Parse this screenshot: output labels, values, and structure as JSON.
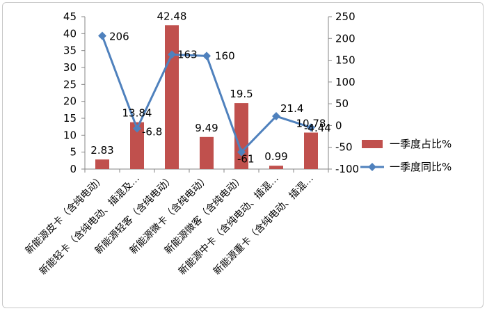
{
  "chart_data": {
    "type": "bar+line",
    "categories": [
      "新能源皮卡（含纯电动）",
      "新能轻卡（含纯电动、插混及…",
      "新能源轻客（含纯电动）",
      "新能源微卡（含纯电动）",
      "新能源微客（含纯电动）",
      "新能源中卡（含纯电动、插混…",
      "新能源重卡（含纯电动、插混…"
    ],
    "series": [
      {
        "name": "一季度占比%",
        "kind": "bar",
        "axis": "left",
        "values": [
          2.83,
          13.84,
          42.48,
          9.49,
          19.5,
          0.99,
          10.78
        ],
        "labels": [
          "2.83",
          "13.84",
          "42.48",
          "9.49",
          "19.5",
          "0.99",
          "10.78"
        ]
      },
      {
        "name": "一季度同比%",
        "kind": "line",
        "axis": "right",
        "values": [
          206,
          -6.8,
          163,
          160,
          -61,
          21.4,
          -4.44
        ],
        "labels": [
          "206",
          "-6.8",
          "163",
          "160",
          "-61",
          "21.4",
          "-4.44"
        ]
      }
    ],
    "y_left": {
      "min": 0,
      "max": 45,
      "ticks": [
        "0",
        "5",
        "10",
        "15",
        "20",
        "25",
        "30",
        "35",
        "40",
        "45"
      ]
    },
    "y_right": {
      "min": -100,
      "max": 250,
      "ticks": [
        "-100",
        "-50",
        "0",
        "50",
        "100",
        "150",
        "200",
        "250"
      ]
    },
    "legend_position": "right",
    "colors": {
      "bar": "#c0504d",
      "line": "#4f81bd",
      "axis": "#868686"
    }
  }
}
